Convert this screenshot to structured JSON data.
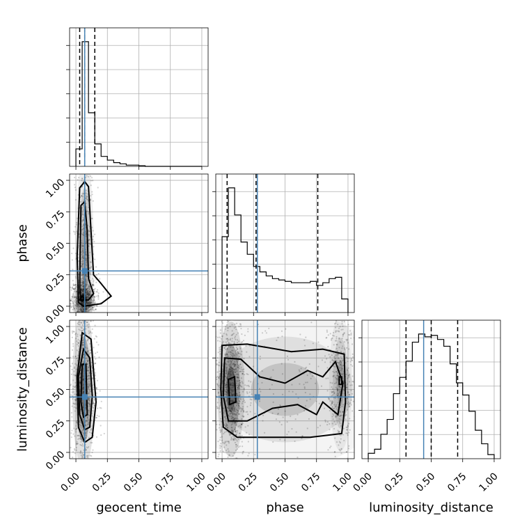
{
  "chart_data": {
    "type": "corner",
    "parameters": [
      "geocent_time",
      "phase",
      "luminosity_distance"
    ],
    "ticks": [
      0.0,
      0.25,
      0.5,
      0.75,
      1.0
    ],
    "tick_labels": [
      "0.00",
      "0.25",
      "0.50",
      "0.75",
      "1.00"
    ],
    "range": [
      -0.05,
      1.05
    ],
    "truth": {
      "geocent_time": 0.07,
      "phase": 0.28,
      "luminosity_distance": 0.44
    },
    "colors": {
      "truth": "#4682b4",
      "hist": "#000000",
      "quantile": "#000000",
      "grid": "#b0b0b0"
    },
    "grid": true,
    "histograms": {
      "geocent_time": {
        "bin_edges": [
          0.0,
          0.05,
          0.1,
          0.15,
          0.2,
          0.25,
          0.3,
          0.35,
          0.4,
          0.45,
          0.5,
          0.55,
          0.6,
          0.65,
          0.7,
          0.75,
          0.8,
          0.85,
          0.9,
          0.95,
          1.0
        ],
        "counts": [
          0.14,
          1.0,
          0.43,
          0.18,
          0.08,
          0.05,
          0.03,
          0.02,
          0.01,
          0.01,
          0.005,
          0,
          0,
          0,
          0,
          0,
          0,
          0,
          0,
          0
        ],
        "quantiles": [
          0.03,
          0.07,
          0.15
        ]
      },
      "phase": {
        "bin_edges": [
          0.0,
          0.05,
          0.1,
          0.15,
          0.2,
          0.25,
          0.3,
          0.35,
          0.4,
          0.45,
          0.5,
          0.55,
          0.6,
          0.65,
          0.7,
          0.75,
          0.8,
          0.85,
          0.9,
          0.95,
          1.0
        ],
        "counts": [
          0.56,
          0.92,
          0.72,
          0.52,
          0.43,
          0.34,
          0.3,
          0.27,
          0.25,
          0.24,
          0.23,
          0.22,
          0.22,
          0.22,
          0.23,
          0.2,
          0.22,
          0.25,
          0.26,
          0.1
        ],
        "quantiles": [
          0.04,
          0.27,
          0.76
        ]
      },
      "luminosity_distance": {
        "bin_edges": [
          0.0,
          0.05,
          0.1,
          0.15,
          0.2,
          0.25,
          0.3,
          0.35,
          0.4,
          0.45,
          0.5,
          0.55,
          0.6,
          0.65,
          0.7,
          0.75,
          0.8,
          0.85,
          0.9,
          0.95,
          1.0
        ],
        "counts": [
          0.04,
          0.07,
          0.18,
          0.29,
          0.48,
          0.6,
          0.72,
          0.86,
          0.92,
          0.9,
          0.91,
          0.88,
          0.83,
          0.7,
          0.56,
          0.47,
          0.35,
          0.21,
          0.11,
          0.03
        ],
        "quantiles": [
          0.3,
          0.5,
          0.71
        ]
      }
    },
    "contours_2d": {
      "phase_vs_geocent_time": [
        [
          [
            0.03,
            0.94
          ],
          [
            0.07,
            0.99
          ],
          [
            0.1,
            0.95
          ],
          [
            0.12,
            0.6
          ],
          [
            0.14,
            0.25
          ],
          [
            0.2,
            0.18
          ],
          [
            0.28,
            0.08
          ],
          [
            0.2,
            0.02
          ],
          [
            0.06,
            0.0
          ],
          [
            0.02,
            0.03
          ],
          [
            0.01,
            0.4
          ]
        ],
        [
          [
            0.04,
            0.8
          ],
          [
            0.07,
            0.83
          ],
          [
            0.09,
            0.6
          ],
          [
            0.1,
            0.22
          ],
          [
            0.14,
            0.1
          ],
          [
            0.1,
            0.05
          ],
          [
            0.04,
            0.05
          ],
          [
            0.03,
            0.15
          ]
        ],
        [
          [
            0.03,
            0.05
          ],
          [
            0.05,
            0.08
          ],
          [
            0.07,
            0.06
          ],
          [
            0.05,
            0.04
          ]
        ]
      ],
      "luminosity_distance_vs_geocent_time": [
        [
          [
            0.05,
            0.95
          ],
          [
            0.12,
            0.9
          ],
          [
            0.16,
            0.4
          ],
          [
            0.13,
            0.12
          ],
          [
            0.07,
            0.08
          ],
          [
            0.02,
            0.2
          ],
          [
            0.01,
            0.6
          ]
        ],
        [
          [
            0.06,
            0.82
          ],
          [
            0.11,
            0.75
          ],
          [
            0.13,
            0.45
          ],
          [
            0.11,
            0.2
          ],
          [
            0.07,
            0.18
          ],
          [
            0.03,
            0.3
          ],
          [
            0.02,
            0.6
          ]
        ],
        [
          [
            0.05,
            0.7
          ],
          [
            0.08,
            0.7
          ],
          [
            0.09,
            0.3
          ],
          [
            0.06,
            0.28
          ],
          [
            0.04,
            0.4
          ]
        ]
      ],
      "luminosity_distance_vs_phase": [
        [
          [
            0.0,
            0.85
          ],
          [
            0.2,
            0.86
          ],
          [
            0.55,
            0.8
          ],
          [
            0.8,
            0.82
          ],
          [
            0.97,
            0.78
          ],
          [
            0.98,
            0.4
          ],
          [
            0.95,
            0.15
          ],
          [
            0.7,
            0.12
          ],
          [
            0.4,
            0.12
          ],
          [
            0.12,
            0.12
          ],
          [
            0.01,
            0.2
          ],
          [
            -0.01,
            0.5
          ]
        ],
        [
          [
            0.02,
            0.75
          ],
          [
            0.15,
            0.74
          ],
          [
            0.3,
            0.6
          ],
          [
            0.5,
            0.55
          ],
          [
            0.68,
            0.65
          ],
          [
            0.8,
            0.6
          ],
          [
            0.9,
            0.72
          ],
          [
            0.96,
            0.55
          ],
          [
            0.92,
            0.3
          ],
          [
            0.8,
            0.4
          ],
          [
            0.75,
            0.3
          ],
          [
            0.6,
            0.38
          ],
          [
            0.4,
            0.35
          ],
          [
            0.2,
            0.25
          ],
          [
            0.05,
            0.25
          ],
          [
            0.01,
            0.45
          ]
        ],
        [
          [
            0.05,
            0.58
          ],
          [
            0.1,
            0.6
          ],
          [
            0.11,
            0.4
          ],
          [
            0.06,
            0.38
          ]
        ],
        [
          [
            0.93,
            0.6
          ],
          [
            0.95,
            0.6
          ],
          [
            0.95,
            0.54
          ],
          [
            0.93,
            0.54
          ]
        ]
      ]
    },
    "density_blobs": {
      "phase_vs_geocent_time": [
        [
          0.06,
          0.05,
          0.05,
          0.08,
          0.9
        ],
        [
          0.07,
          0.4,
          0.04,
          0.45,
          0.6
        ]
      ],
      "luminosity_distance_vs_geocent_time": [
        [
          0.06,
          0.5,
          0.05,
          0.35,
          0.95
        ]
      ],
      "luminosity_distance_vs_phase": [
        [
          0.07,
          0.5,
          0.06,
          0.3,
          0.95
        ],
        [
          0.5,
          0.5,
          0.45,
          0.35,
          0.35
        ],
        [
          0.94,
          0.55,
          0.05,
          0.3,
          0.45
        ]
      ]
    }
  }
}
